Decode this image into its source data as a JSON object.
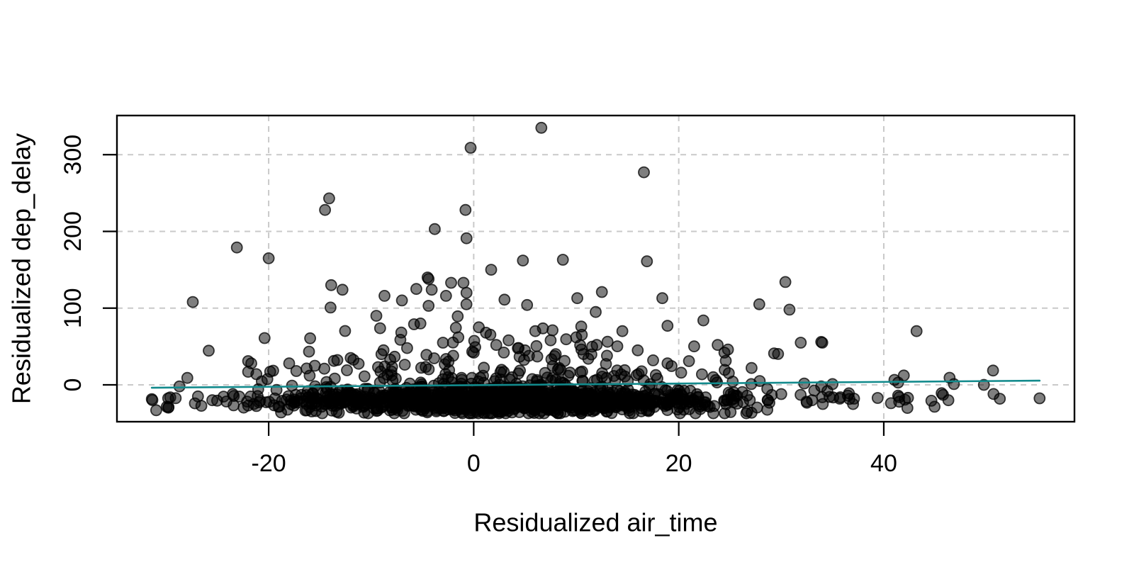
{
  "chart_data": {
    "type": "scatter",
    "title": "",
    "xlabel": "Residualized air_time",
    "ylabel": "Residualized dep_delay",
    "xlim": [
      -34.8,
      58.6
    ],
    "ylim": [
      -48,
      351
    ],
    "x_ticks": [
      -20,
      0,
      20,
      40
    ],
    "y_ticks": [
      0,
      100,
      200,
      300
    ],
    "grid": {
      "visible": true,
      "style": "dashed",
      "color": "#c9c9c9"
    },
    "colors": {
      "point_fill": "#000000",
      "point_stroke": "#000000",
      "frame": "#000000",
      "trend": "#128a8c",
      "text": "#000000",
      "background": "#ffffff"
    },
    "point_style": {
      "radius": 7.5,
      "fill_opacity": 0.5,
      "stroke_opacity": 0.75,
      "stroke_width": 1.8
    },
    "trend_line": {
      "x1": -31.4,
      "y1": -3.7,
      "x2": 55.2,
      "y2": 5.5
    },
    "outlier_points": [
      [
        6.6,
        335
      ],
      [
        -0.3,
        309
      ],
      [
        16.6,
        277
      ],
      [
        -14.1,
        243
      ],
      [
        -14.5,
        228
      ],
      [
        -0.8,
        228
      ],
      [
        -3.8,
        203
      ],
      [
        -0.7,
        191
      ],
      [
        -23.1,
        179
      ],
      [
        -20,
        165
      ],
      [
        4.8,
        162
      ],
      [
        8.7,
        163
      ],
      [
        16.9,
        161
      ],
      [
        1.7,
        150
      ],
      [
        -4.5,
        140
      ],
      [
        -4.4,
        138
      ],
      [
        -2.2,
        133
      ],
      [
        -1,
        133
      ],
      [
        30.4,
        134
      ],
      [
        -13.9,
        130
      ],
      [
        -5.6,
        125
      ],
      [
        -4.1,
        124
      ],
      [
        -12.8,
        124
      ],
      [
        12.5,
        121
      ],
      [
        -0.7,
        120
      ],
      [
        -2.7,
        116
      ],
      [
        -8.7,
        116
      ],
      [
        18.4,
        113
      ],
      [
        10.1,
        113
      ],
      [
        3,
        111
      ],
      [
        -7,
        110
      ],
      [
        -27.4,
        108
      ],
      [
        -4.4,
        103
      ],
      [
        30.8,
        98
      ],
      [
        11.9,
        95
      ],
      [
        -9.5,
        90
      ],
      [
        22.4,
        84
      ],
      [
        -5.2,
        80
      ],
      [
        18.9,
        77
      ],
      [
        0.5,
        75
      ],
      [
        43.2,
        70
      ],
      [
        6,
        70
      ],
      [
        14.5,
        70
      ],
      [
        1.2,
        68
      ],
      [
        -1.5,
        62
      ],
      [
        10,
        62
      ],
      [
        -20.4,
        61
      ],
      [
        3.4,
        58
      ],
      [
        7.5,
        58
      ],
      [
        33.9,
        56
      ],
      [
        -3,
        55
      ],
      [
        31.9,
        55
      ],
      [
        34,
        55
      ],
      [
        23.8,
        52
      ],
      [
        2.2,
        52
      ],
      [
        12,
        52
      ],
      [
        -6.5,
        48
      ],
      [
        16,
        45
      ],
      [
        5,
        45
      ],
      [
        24.8,
        46
      ],
      [
        0,
        42
      ],
      [
        29.3,
        41
      ],
      [
        -9,
        40
      ],
      [
        8,
        40
      ],
      [
        13,
        38
      ],
      [
        -2,
        38
      ],
      [
        -12,
        35
      ],
      [
        17.5,
        32
      ],
      [
        21,
        31
      ],
      [
        -22,
        31
      ],
      [
        -21.7,
        28
      ],
      [
        18.9,
        28
      ],
      [
        -18,
        28
      ],
      [
        -15.5,
        25
      ],
      [
        27.1,
        22
      ],
      [
        -17.3,
        18
      ],
      [
        -22,
        17
      ],
      [
        -21.2,
        14
      ],
      [
        -16,
        12
      ],
      [
        27.9,
        5
      ],
      [
        41.4,
        3
      ],
      [
        35,
        1
      ],
      [
        -28.7,
        -2
      ],
      [
        33.9,
        -2
      ],
      [
        34.5,
        -8
      ],
      [
        36.6,
        -11
      ],
      [
        30,
        -12
      ],
      [
        -23.5,
        -12
      ],
      [
        36.5,
        -14
      ],
      [
        41.4,
        -14
      ],
      [
        -26.9,
        -15
      ],
      [
        34,
        -16
      ],
      [
        41.5,
        -16
      ],
      [
        55.2,
        -17.5
      ],
      [
        -29.8,
        -17.5
      ],
      [
        35.7,
        -18
      ],
      [
        37.1,
        -18
      ],
      [
        -31.4,
        -18.5
      ],
      [
        33,
        -20
      ],
      [
        46.3,
        -20
      ],
      [
        -25.5,
        -20
      ],
      [
        41.5,
        -22
      ],
      [
        37,
        -25
      ],
      [
        -10.3,
        -37
      ]
    ],
    "cloud": {
      "count": 1500,
      "seed": 20240817,
      "x_mean": 3.5,
      "x_sd": 10.5,
      "x_uniform_frac": 0.07,
      "x_min": -32,
      "x_max": 54,
      "y_base": -21,
      "y_sd": 7.5,
      "y_band_min": -37,
      "y_band_max": 7,
      "lift_prob": 0.25,
      "lift_scale": 25,
      "lift_max": 105
    }
  }
}
